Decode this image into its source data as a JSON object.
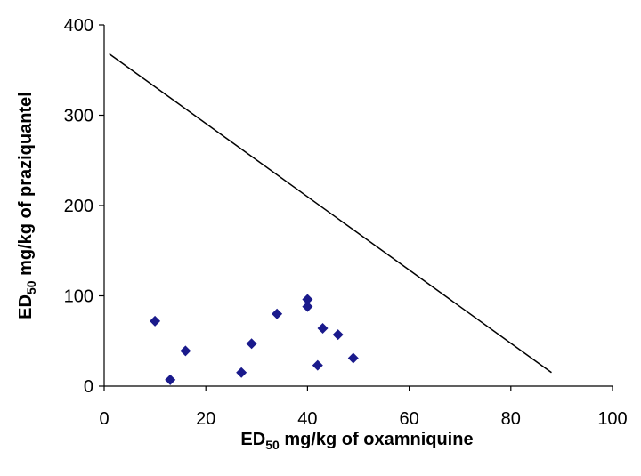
{
  "chart_data": {
    "type": "scatter",
    "title": "",
    "xlabel": {
      "prefix": "ED",
      "subscript": "50",
      "suffix": " mg/kg of oxamniquine"
    },
    "ylabel": {
      "prefix": "ED",
      "subscript": "50",
      "suffix": " mg/kg of praziquantel"
    },
    "xlim": [
      0,
      100
    ],
    "ylim": [
      0,
      400
    ],
    "x_ticks": [
      0,
      20,
      40,
      60,
      80,
      100
    ],
    "y_ticks": [
      0,
      100,
      200,
      300,
      400
    ],
    "x_tick_labels": [
      "0",
      "20",
      "40",
      "60",
      "80",
      "100"
    ],
    "y_tick_labels": [
      "0",
      "100",
      "200",
      "300",
      "400"
    ],
    "grid": false,
    "legend": "none",
    "marker": "diamond",
    "marker_color": "#1a1a8c",
    "points": [
      {
        "x": 10,
        "y": 72
      },
      {
        "x": 13,
        "y": 7
      },
      {
        "x": 16,
        "y": 39
      },
      {
        "x": 27,
        "y": 15
      },
      {
        "x": 29,
        "y": 47
      },
      {
        "x": 34,
        "y": 80
      },
      {
        "x": 40,
        "y": 96
      },
      {
        "x": 40,
        "y": 88
      },
      {
        "x": 42,
        "y": 23
      },
      {
        "x": 43,
        "y": 64
      },
      {
        "x": 46,
        "y": 57
      },
      {
        "x": 49,
        "y": 31
      }
    ],
    "line": {
      "x1": 1,
      "y1": 368,
      "x2": 88,
      "y2": 15,
      "color": "#000000"
    }
  }
}
